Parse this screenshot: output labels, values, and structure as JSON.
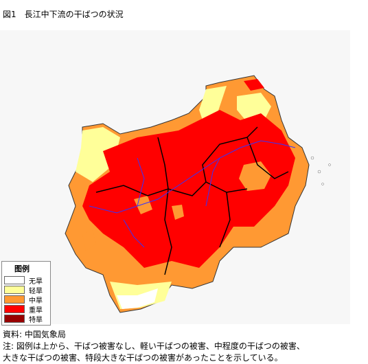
{
  "header": {
    "title": "図1　長江中下流の干ばつの状況"
  },
  "legend": {
    "title": "图例",
    "items": [
      {
        "label": "无旱",
        "color": "#ffffff"
      },
      {
        "label": "轻旱",
        "color": "#ffff99"
      },
      {
        "label": "中旱",
        "color": "#ff9933"
      },
      {
        "label": "重旱",
        "color": "#ff0000"
      },
      {
        "label": "特旱",
        "color": "#990000"
      }
    ]
  },
  "footer": {
    "source": "資料: 中国気象局",
    "notes": [
      "注: 図例は上から、干ばつ被害なし、軽い干ばつの被害、中程度の干ばつの被害、",
      "大きな干ばつの被害、特段大きな干ばつの被害があったことを示している。"
    ]
  }
}
